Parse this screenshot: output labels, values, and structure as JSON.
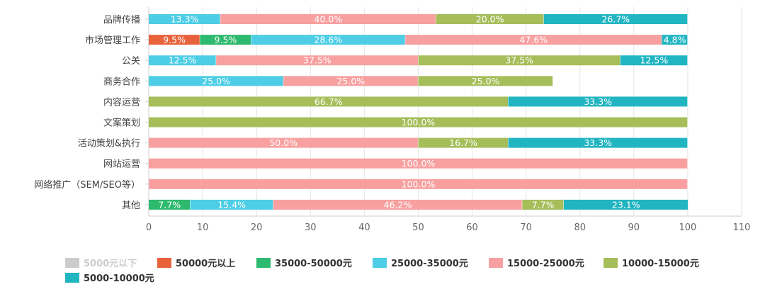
{
  "chart_data": {
    "type": "bar",
    "orientation": "horizontal",
    "stacked": true,
    "categories": [
      "品牌传播",
      "市场管理工作",
      "公关",
      "商务合作",
      "内容运营",
      "文案策划",
      "活动策划&执行",
      "网站运营",
      "网络推广（SEM/SEO等）",
      "其他"
    ],
    "xlim": [
      0,
      110
    ],
    "xticks": [
      0,
      10,
      20,
      30,
      40,
      50,
      60,
      70,
      80,
      90,
      100,
      110
    ],
    "grid": true,
    "legend_position": "bottom-left",
    "series": [
      {
        "name": "5000元以下",
        "color": "#cccccc",
        "legend_inactive": true,
        "values": [
          0,
          0,
          0,
          0,
          0,
          0,
          0,
          0,
          0,
          0
        ],
        "labels": [
          "",
          "",
          "",
          "",
          "",
          "",
          "",
          "",
          "",
          ""
        ]
      },
      {
        "name": "50000元以上",
        "color": "#e8623b",
        "values": [
          0,
          9.5,
          0,
          0,
          0,
          0,
          0,
          0,
          0,
          0
        ],
        "labels": [
          "",
          "9.5%",
          "",
          "",
          "",
          "",
          "",
          "",
          "",
          ""
        ]
      },
      {
        "name": "35000-50000元",
        "color": "#2dba6e",
        "values": [
          0,
          9.5,
          0,
          0,
          0,
          0,
          0,
          0,
          0,
          7.7
        ],
        "labels": [
          "",
          "9.5%",
          "",
          "",
          "",
          "",
          "",
          "",
          "",
          "7.7%"
        ]
      },
      {
        "name": "25000-35000元",
        "color": "#4dcde6",
        "values": [
          13.3,
          28.6,
          12.5,
          25.0,
          0,
          0,
          0,
          0,
          0,
          15.4
        ],
        "labels": [
          "13.3%",
          "28.6%",
          "12.5%",
          "25.0%",
          "",
          "",
          "",
          "",
          "",
          "15.4%"
        ]
      },
      {
        "name": "15000-25000元",
        "color": "#f8a0a0",
        "values": [
          40.0,
          47.6,
          37.5,
          25.0,
          0,
          0,
          50.0,
          100.0,
          100.0,
          46.2
        ],
        "labels": [
          "40.0%",
          "47.6%",
          "37.5%",
          "25.0%",
          "",
          "",
          "50.0%",
          "100.0%",
          "100.0%",
          "46.2%"
        ]
      },
      {
        "name": "10000-15000元",
        "color": "#a6be5a",
        "values": [
          20.0,
          0,
          37.5,
          25.0,
          66.7,
          100.0,
          16.7,
          0,
          0,
          7.7
        ],
        "labels": [
          "20.0%",
          "",
          "37.5%",
          "25.0%",
          "66.7%",
          "100.0%",
          "16.7%",
          "",
          "",
          "7.7%"
        ]
      },
      {
        "name": "5000-10000元",
        "color": "#21b5c1",
        "values": [
          26.7,
          4.8,
          12.5,
          0,
          33.3,
          0,
          33.3,
          0,
          0,
          23.1
        ],
        "labels": [
          "26.7%",
          "4.8%",
          "12.5%",
          "",
          "33.3%",
          "",
          "33.3%",
          "",
          "",
          "23.1%"
        ]
      }
    ]
  }
}
